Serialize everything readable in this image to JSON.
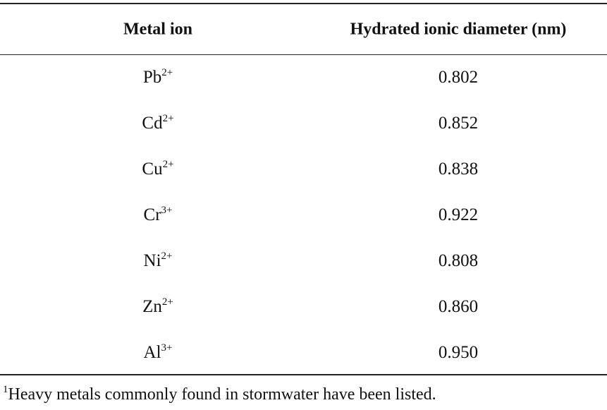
{
  "table": {
    "header": [
      "Metal ion",
      "Hydrated ionic diameter (nm)"
    ],
    "rows": [
      [
        {
          "base": "Pb",
          "charge": "2+"
        },
        "0.802"
      ],
      [
        {
          "base": "Cd",
          "charge": "2+"
        },
        "0.852"
      ],
      [
        {
          "base": "Cu",
          "charge": "2+"
        },
        "0.838"
      ],
      [
        {
          "base": "Cr",
          "charge": "3+"
        },
        "0.922"
      ],
      [
        {
          "base": "Ni",
          "charge": "2+"
        },
        "0.808"
      ],
      [
        {
          "base": "Zn",
          "charge": "2+"
        },
        "0.860"
      ],
      [
        {
          "base": "Al",
          "charge": "3+"
        },
        "0.950"
      ]
    ]
  },
  "footnote": {
    "marker": "1",
    "text": "Heavy metals commonly found in stormwater have been listed."
  }
}
